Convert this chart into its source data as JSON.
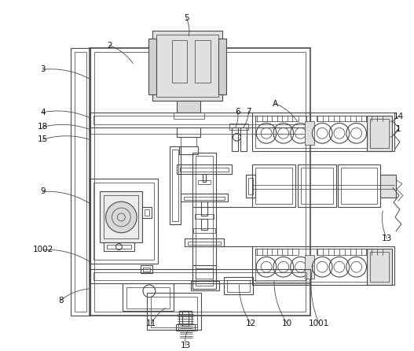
{
  "bg_color": "#ffffff",
  "line_color": "#4a4a4a",
  "lw_heavy": 1.2,
  "lw_med": 0.8,
  "lw_light": 0.55,
  "fig_width": 5.27,
  "fig_height": 4.46,
  "dpi": 100
}
